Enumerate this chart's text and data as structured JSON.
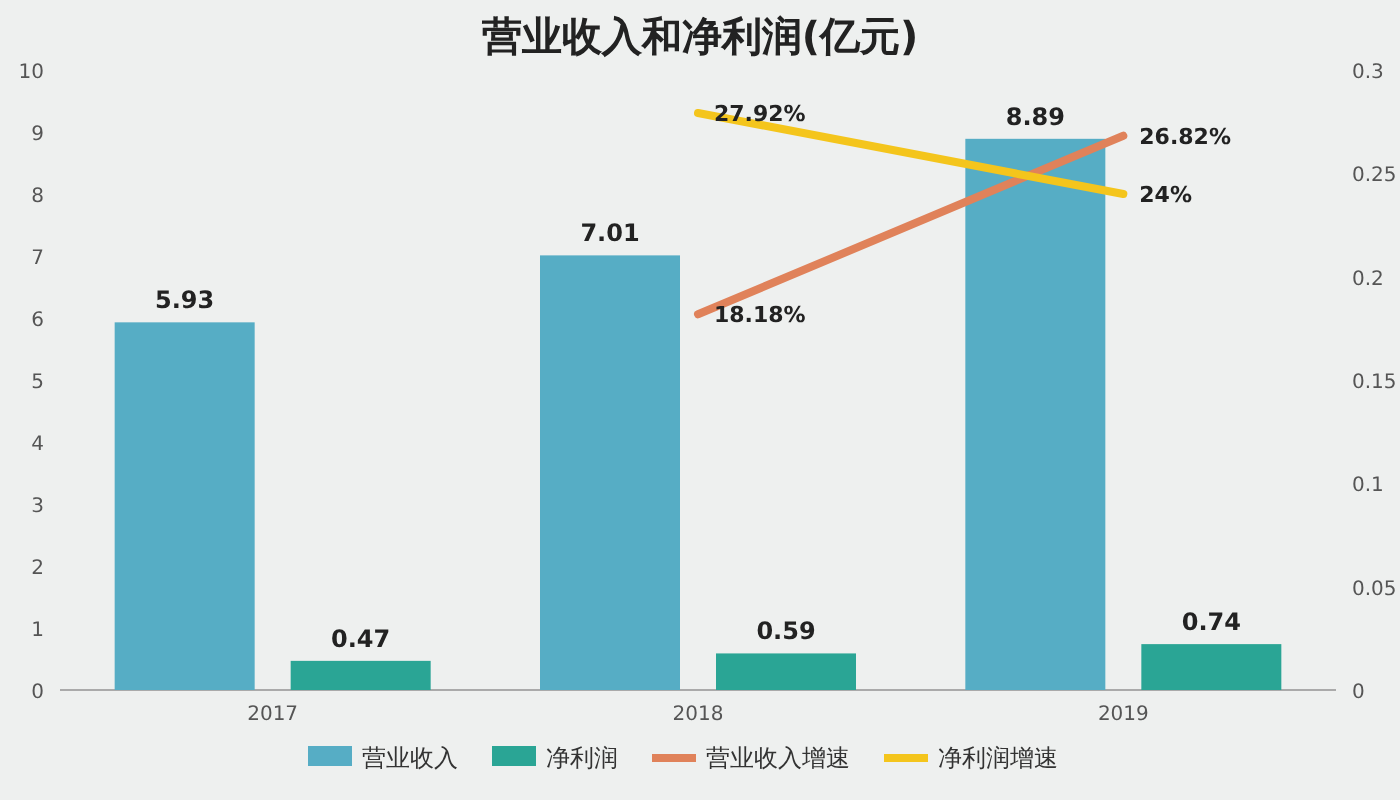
{
  "chart_data": {
    "type": "bar",
    "title": "营业收入和净利润(亿元)",
    "categories": [
      "2017",
      "2018",
      "2019"
    ],
    "series": [
      {
        "name": "营业收入",
        "color": "#56adc5",
        "values": [
          5.93,
          7.01,
          8.89
        ],
        "value_labels": [
          "5.93",
          "7.01",
          "8.89"
        ]
      },
      {
        "name": "净利润",
        "color": "#2aa595",
        "values": [
          0.47,
          0.59,
          0.74
        ],
        "value_labels": [
          "0.47",
          "0.59",
          "0.74"
        ]
      },
      {
        "name": "营业收入增速",
        "type": "line",
        "axis": "y2",
        "color": "#e0825a",
        "values": [
          null,
          0.1818,
          0.2682
        ],
        "value_labels": [
          null,
          "18.18%",
          "26.82%"
        ]
      },
      {
        "name": "净利润增速",
        "type": "line",
        "axis": "y2",
        "color": "#f4c51c",
        "values": [
          null,
          0.2792,
          0.24
        ],
        "value_labels": [
          null,
          "27.92%",
          "24%"
        ]
      }
    ],
    "ylim": [
      0,
      10
    ],
    "yticks": [
      0,
      1,
      2,
      3,
      4,
      5,
      6,
      7,
      8,
      9,
      10
    ],
    "y2lim": [
      0,
      0.3
    ],
    "y2ticks": [
      0,
      0.05,
      0.1,
      0.15,
      0.2,
      0.25,
      0.3
    ],
    "legend": "bottom",
    "grid": false
  }
}
